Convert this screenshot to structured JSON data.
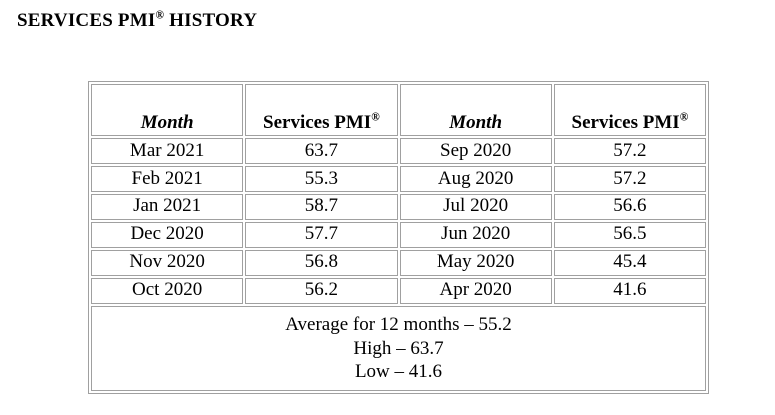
{
  "title": {
    "main": "SERVICES PMI",
    "reg": "®",
    "rest": " HISTORY"
  },
  "table": {
    "headers": [
      {
        "text": "Month",
        "reg": ""
      },
      {
        "text": "Services PMI",
        "reg": "®"
      },
      {
        "text": "Month",
        "reg": ""
      },
      {
        "text": "Services PMI",
        "reg": "®"
      }
    ],
    "rows": [
      {
        "month_a": "Mar 2021",
        "pmi_a": "63.7",
        "month_b": "Sep 2020",
        "pmi_b": "57.2"
      },
      {
        "month_a": "Feb 2021",
        "pmi_a": "55.3",
        "month_b": "Aug 2020",
        "pmi_b": "57.2"
      },
      {
        "month_a": "Jan 2021",
        "pmi_a": "58.7",
        "month_b": "Jul 2020",
        "pmi_b": "56.6"
      },
      {
        "month_a": "Dec 2020",
        "pmi_a": "57.7",
        "month_b": "Jun 2020",
        "pmi_b": "56.5"
      },
      {
        "month_a": "Nov 2020",
        "pmi_a": "56.8",
        "month_b": "May 2020",
        "pmi_b": "45.4"
      },
      {
        "month_a": "Oct 2020",
        "pmi_a": "56.2",
        "month_b": "Apr 2020",
        "pmi_b": "41.6"
      }
    ],
    "summary": {
      "average": "Average for 12 months – 55.2",
      "high": "High – 63.7",
      "low": "Low – 41.6"
    }
  }
}
